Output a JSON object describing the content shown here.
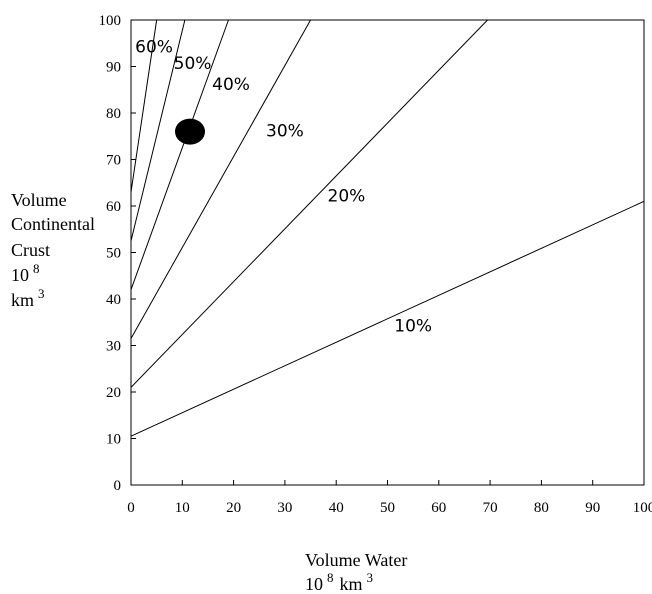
{
  "chart_data": {
    "type": "line",
    "xlim": [
      0,
      100
    ],
    "ylim": [
      0,
      100
    ],
    "x_ticks": [
      "0",
      "10",
      "20",
      "30",
      "40",
      "50",
      "60",
      "70",
      "80",
      "90",
      "100"
    ],
    "y_ticks": [
      "0",
      "10",
      "20",
      "30",
      "40",
      "50",
      "60",
      "70",
      "80",
      "90",
      "100"
    ],
    "xlabel_lines": [
      "Volume Water",
      "10 8 km 3"
    ],
    "ylabel_lines": [
      "Volume",
      "Continental",
      "Crust",
      "10 8",
      "km 3"
    ],
    "series": [
      {
        "name": "10%",
        "x": [
          0,
          100
        ],
        "y": [
          10.5,
          61
        ]
      },
      {
        "name": "20%",
        "x": [
          0,
          69.5
        ],
        "y": [
          21,
          100
        ]
      },
      {
        "name": "30%",
        "x": [
          0,
          35
        ],
        "y": [
          31.5,
          100
        ]
      },
      {
        "name": "40%",
        "x": [
          0,
          19
        ],
        "y": [
          42,
          100
        ]
      },
      {
        "name": "50%",
        "x": [
          0,
          10.5
        ],
        "y": [
          52.5,
          100
        ]
      },
      {
        "name": "60%",
        "x": [
          0,
          5
        ],
        "y": [
          63,
          100
        ]
      }
    ],
    "line_labels": [
      {
        "text": "10%",
        "x": 55,
        "y": 33
      },
      {
        "text": "20%",
        "x": 42,
        "y": 61
      },
      {
        "text": "30%",
        "x": 30,
        "y": 75
      },
      {
        "text": "40%",
        "x": 19.5,
        "y": 85
      },
      {
        "text": "50%",
        "x": 12,
        "y": 89.5
      },
      {
        "text": "60%",
        "x": 4.5,
        "y": 93
      }
    ],
    "marker": {
      "x": 11.5,
      "y": 76
    },
    "grid": false,
    "legend": "none",
    "colors": {
      "line": "#000000",
      "marker": "#000000"
    }
  }
}
